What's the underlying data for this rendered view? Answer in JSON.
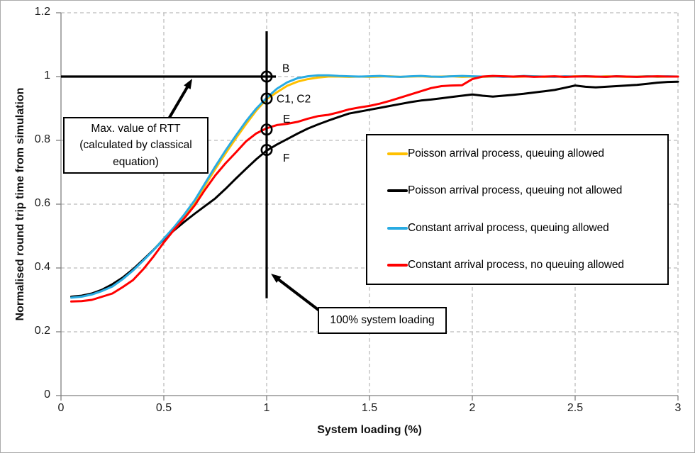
{
  "figure": {
    "background": "#FFFFFF",
    "border_color": "#ABABAB"
  },
  "chart_data": {
    "type": "line",
    "title": "",
    "xlabel": "System loading (%)",
    "ylabel": "Normalised round trip time from simulation",
    "xlim": [
      0,
      3
    ],
    "ylim": [
      0,
      1.2
    ],
    "xticks": [
      0,
      0.5,
      1,
      1.5,
      2,
      2.5,
      3
    ],
    "yticks": [
      0,
      0.2,
      0.4,
      0.6,
      0.8,
      1,
      1.2
    ],
    "grid": {
      "show": true,
      "style": "dashed",
      "color": "#A8A8A8"
    },
    "axis_color": "#808080",
    "legend_position": "center-right-box",
    "x": [
      0.05,
      0.1,
      0.15,
      0.2,
      0.25,
      0.3,
      0.35,
      0.4,
      0.45,
      0.5,
      0.55,
      0.6,
      0.65,
      0.7,
      0.75,
      0.8,
      0.85,
      0.9,
      0.95,
      1,
      1.05,
      1.1,
      1.15,
      1.2,
      1.25,
      1.3,
      1.35,
      1.4,
      1.45,
      1.5,
      1.55,
      1.6,
      1.65,
      1.7,
      1.75,
      1.8,
      1.85,
      1.9,
      1.95,
      2,
      2.05,
      2.1,
      2.15,
      2.2,
      2.25,
      2.3,
      2.35,
      2.4,
      2.45,
      2.5,
      2.55,
      2.6,
      2.65,
      2.7,
      2.75,
      2.8,
      2.85,
      2.9,
      2.95,
      3
    ],
    "series": [
      {
        "id": "poisson-queuing-allowed",
        "name": "Poisson arrival process, queuing allowed",
        "color": "#FFC000",
        "y": [
          0.309,
          0.312,
          0.319,
          0.33,
          0.344,
          0.367,
          0.394,
          0.425,
          0.457,
          0.492,
          0.526,
          0.564,
          0.607,
          0.658,
          0.71,
          0.759,
          0.806,
          0.851,
          0.894,
          0.929,
          0.951,
          0.971,
          0.984,
          0.992,
          0.997,
          1.0,
          1.0,
          0.999,
          1.0,
          0.999,
          1.0,
          1.001,
          0.999,
          1.0,
          1.001,
          0.999,
          1.0,
          1.001,
          0.999,
          1.0,
          0.999,
          1.0,
          1.001,
          0.999,
          1.0,
          1.001,
          0.999,
          1.0,
          0.999,
          1.001,
          1.0,
          0.999,
          1.001,
          1.0,
          0.999,
          1.0,
          1.001,
          0.999,
          1.0,
          1.0
        ]
      },
      {
        "id": "poisson-queuing-not-allowed",
        "name": "Poisson arrival process, queuing not allowed",
        "color": "#000000",
        "y": [
          0.31,
          0.313,
          0.32,
          0.332,
          0.349,
          0.37,
          0.396,
          0.426,
          0.457,
          0.49,
          0.518,
          0.545,
          0.57,
          0.594,
          0.618,
          0.648,
          0.68,
          0.711,
          0.741,
          0.768,
          0.787,
          0.804,
          0.821,
          0.837,
          0.85,
          0.862,
          0.873,
          0.884,
          0.89,
          0.896,
          0.902,
          0.908,
          0.914,
          0.92,
          0.925,
          0.928,
          0.932,
          0.936,
          0.94,
          0.944,
          0.94,
          0.937,
          0.94,
          0.943,
          0.946,
          0.95,
          0.954,
          0.958,
          0.965,
          0.972,
          0.968,
          0.966,
          0.968,
          0.97,
          0.972,
          0.974,
          0.977,
          0.981,
          0.983,
          0.984
        ]
      },
      {
        "id": "constant-queuing-allowed",
        "name": "Constant arrival process, queuing allowed",
        "color": "#29ABE2",
        "y": [
          0.307,
          0.31,
          0.317,
          0.328,
          0.342,
          0.365,
          0.392,
          0.423,
          0.456,
          0.492,
          0.528,
          0.568,
          0.612,
          0.665,
          0.718,
          0.768,
          0.815,
          0.86,
          0.9,
          0.933,
          0.962,
          0.982,
          0.995,
          1.001,
          1.004,
          1.004,
          1.002,
          1.001,
          1.0,
          1.001,
          1.002,
          1.0,
          0.999,
          1.001,
          1.002,
          1.0,
          0.999,
          1.001,
          1.002,
          1.001,
          1.0,
          1.001,
          0.999,
          1.0,
          1.002,
          1.001,
          1.0,
          0.999,
          1.001,
          1.0,
          1.001,
          1.0,
          0.999,
          1.001,
          1.0,
          0.999,
          1.001,
          1.0,
          1.001,
          1.0
        ]
      },
      {
        "id": "constant-no-queuing-allowed",
        "name": "Constant arrival process, no queuing allowed",
        "color": "#FF0000",
        "y": [
          0.295,
          0.296,
          0.3,
          0.31,
          0.32,
          0.34,
          0.362,
          0.396,
          0.436,
          0.48,
          0.52,
          0.556,
          0.596,
          0.645,
          0.69,
          0.728,
          0.762,
          0.797,
          0.822,
          0.838,
          0.848,
          0.852,
          0.858,
          0.868,
          0.876,
          0.88,
          0.888,
          0.897,
          0.903,
          0.908,
          0.915,
          0.924,
          0.934,
          0.944,
          0.954,
          0.964,
          0.97,
          0.972,
          0.973,
          0.992,
          1.0,
          1.002,
          1.001,
          1.0,
          1.001,
          0.999,
          1.0,
          1.001,
          0.999,
          1.0,
          1.001,
          1.0,
          0.999,
          1.001,
          1.0,
          0.999,
          1.0,
          1.001,
          1.0,
          1.0
        ]
      }
    ],
    "reference_lines": [
      {
        "id": "max-rtt-line",
        "orientation": "horizontal",
        "y": 1.0,
        "x_from": 0,
        "x_to": 1.045,
        "color": "#000000"
      },
      {
        "id": "system-loading-line",
        "orientation": "vertical",
        "x": 1.0,
        "y_from": 0.305,
        "y_to": 1.142,
        "color": "#000000"
      }
    ],
    "marked_points": [
      {
        "label": "B",
        "x": 1.0,
        "y": 1.0
      },
      {
        "label": "C1, C2",
        "x": 1.0,
        "y": 0.931
      },
      {
        "label": "E",
        "x": 1.0,
        "y": 0.834
      },
      {
        "label": "F",
        "x": 1.0,
        "y": 0.77
      }
    ],
    "annotations": [
      {
        "id": "max-rtt",
        "text": "Max. value of RTT\n(calculated by classical\nequation)",
        "arrow": {
          "from": {
            "x": 0.525,
            "y": 0.869
          },
          "to": {
            "x": 0.638,
            "y": 0.993
          }
        }
      },
      {
        "id": "loading-100",
        "text": "100% system loading",
        "arrow": {
          "from": {
            "x": 1.255,
            "y": 0.267
          },
          "to": {
            "x": 1.021,
            "y": 0.382
          }
        }
      }
    ]
  }
}
